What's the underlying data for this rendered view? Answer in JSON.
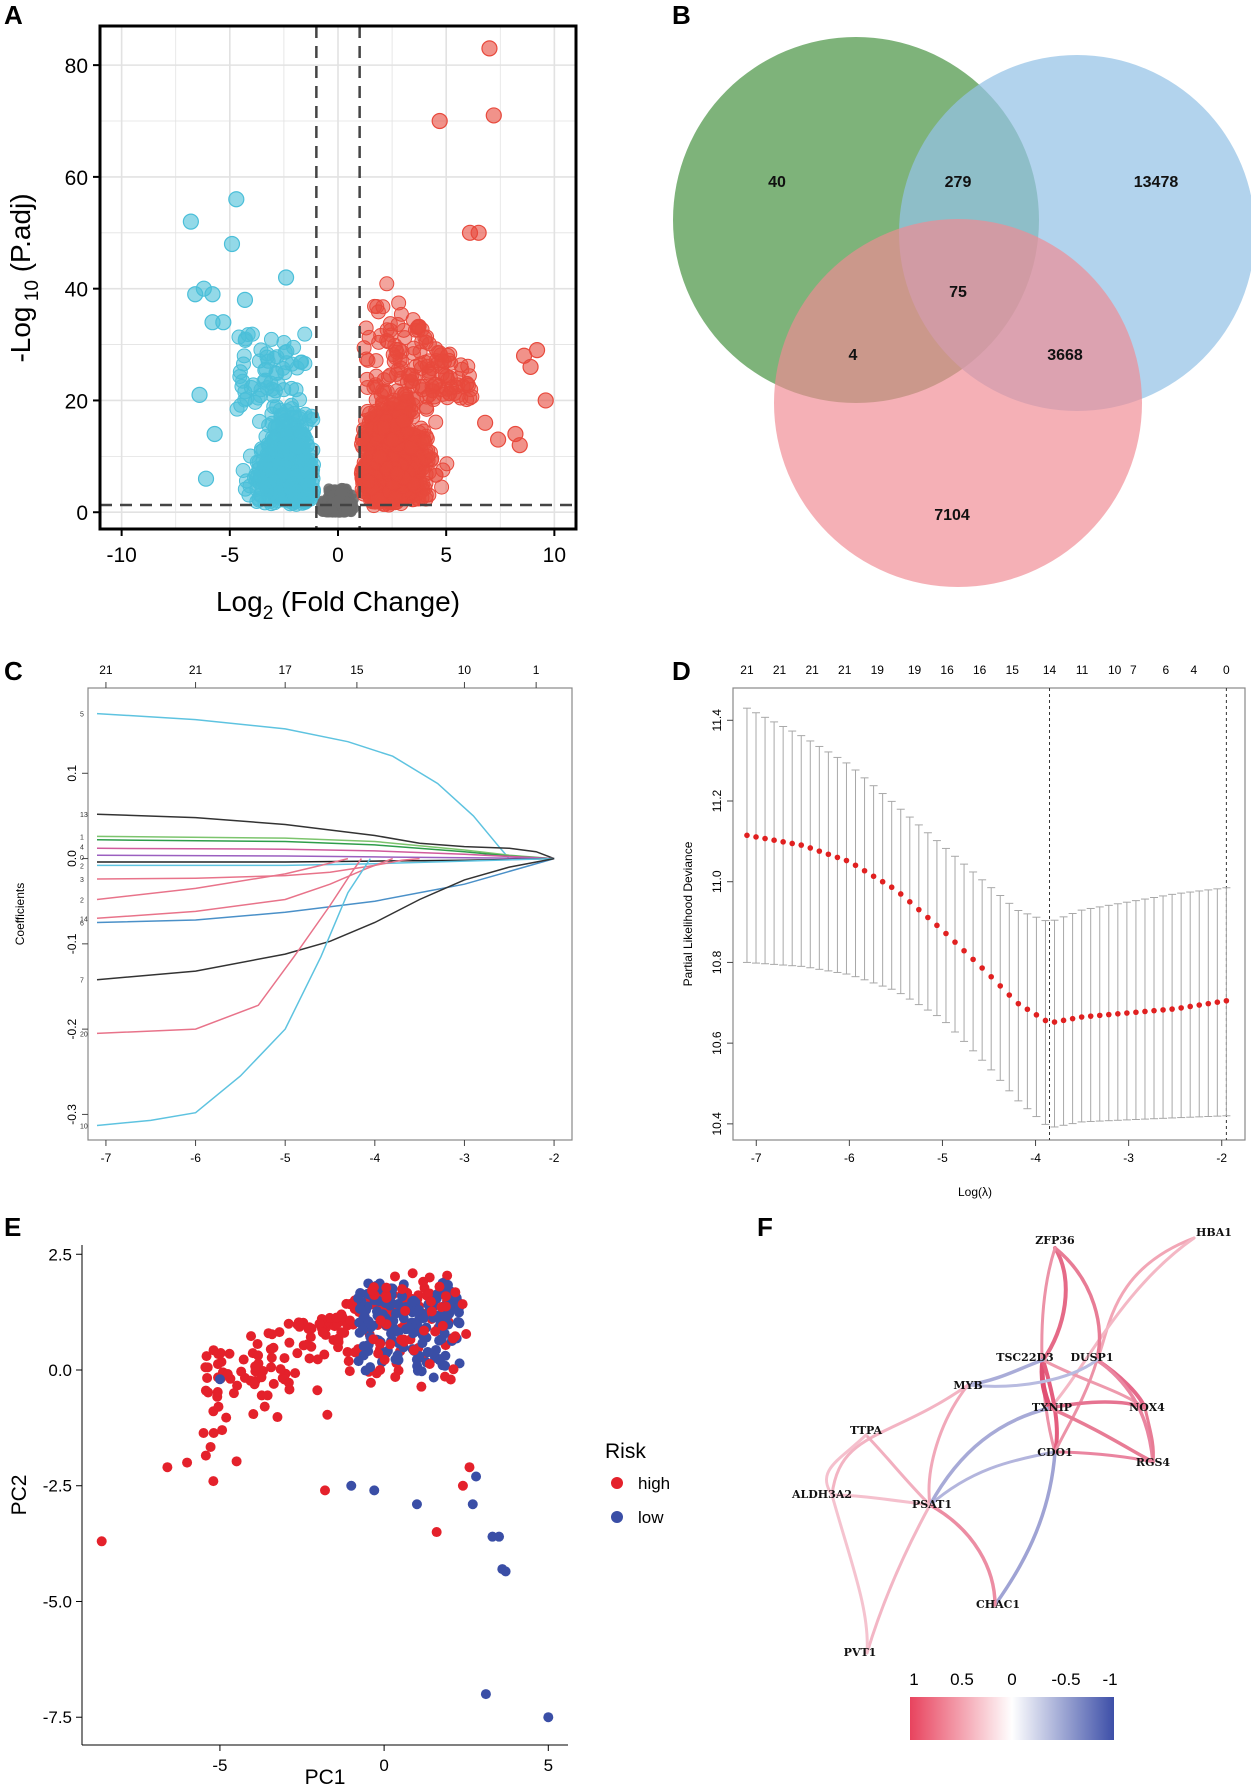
{
  "panels": [
    "A",
    "B",
    "C",
    "D",
    "E",
    "F"
  ],
  "chart_data": [
    {
      "panel": "A",
      "type": "scatter",
      "title": "",
      "xlabel_main": "Log",
      "xlabel_sub": "2",
      "xlabel_rest": " (Fold Change)",
      "ylabel_main": "-Log",
      "ylabel_sub": " 10",
      "ylabel_rest": " (P.adj)",
      "xlim": [
        -11,
        11
      ],
      "ylim": [
        -3,
        87
      ],
      "xticks": [
        -10,
        -5,
        0,
        5,
        10
      ],
      "xtick_labels": [
        "-10",
        "-5",
        "0",
        "5",
        "10"
      ],
      "yticks": [
        0,
        20,
        40,
        60,
        80
      ],
      "ytick_labels": [
        "0",
        "20",
        "40",
        "60",
        "80"
      ],
      "thresholds": {
        "log2fc": [
          -1,
          1
        ],
        "neglog10_padj": 1.3
      },
      "colors": {
        "up": "#e8493c",
        "down": "#4bbfd9",
        "ns": "#6b6b6b"
      },
      "highlight_points_up": [
        [
          7,
          83
        ],
        [
          7.2,
          71
        ],
        [
          4.7,
          70
        ],
        [
          6.5,
          50
        ],
        [
          6.1,
          50
        ],
        [
          8.6,
          28
        ],
        [
          9.2,
          29
        ],
        [
          8.9,
          26
        ],
        [
          9.6,
          20
        ],
        [
          8.2,
          14
        ],
        [
          8.4,
          12
        ],
        [
          7.4,
          13
        ],
        [
          6.8,
          16
        ]
      ],
      "highlight_points_down": [
        [
          -6.8,
          52
        ],
        [
          -4.7,
          56
        ],
        [
          -4.9,
          48
        ],
        [
          -6.2,
          40
        ],
        [
          -6.6,
          39
        ],
        [
          -5.8,
          39
        ],
        [
          -2.4,
          42
        ],
        [
          -5.3,
          34
        ],
        [
          -5.8,
          34
        ],
        [
          -6.4,
          21
        ],
        [
          -5.7,
          14
        ],
        [
          -6.1,
          6
        ],
        [
          -4.3,
          38
        ]
      ]
    },
    {
      "panel": "B",
      "type": "venn",
      "sets": [
        {
          "color": "#5a9e55"
        },
        {
          "color": "#94c2e6"
        },
        {
          "color": "#f08a94"
        }
      ],
      "regions": [
        {
          "id": "only-green",
          "value": "40"
        },
        {
          "id": "green-blue",
          "value": "279"
        },
        {
          "id": "only-blue",
          "value": "13478"
        },
        {
          "id": "all-three",
          "value": "75"
        },
        {
          "id": "green-red",
          "value": "4"
        },
        {
          "id": "blue-red",
          "value": "3668"
        },
        {
          "id": "only-red",
          "value": "7104"
        }
      ]
    },
    {
      "panel": "C",
      "type": "line",
      "xlabel": "",
      "ylabel": "Coefficients",
      "xlim": [
        -7.2,
        -1.8
      ],
      "ylim": [
        -0.33,
        0.2
      ],
      "xticks": [
        -7,
        -6,
        -5,
        -4,
        -3,
        -2
      ],
      "xtick_labels": [
        "-7",
        "-6",
        "-5",
        "-4",
        "-3",
        "-2"
      ],
      "yticks": [
        -0.3,
        -0.2,
        -0.1,
        0.0,
        0.1
      ],
      "ytick_labels": [
        "-0.3",
        "-0.2",
        "-0.1",
        "0.0",
        "0.1"
      ],
      "top_ticks": [
        -7,
        -6,
        -5,
        -4.2,
        -3,
        -2.2
      ],
      "top_labels": [
        "21",
        "21",
        "17",
        "15",
        "10",
        "1"
      ],
      "series": [
        {
          "label": "5",
          "color": "#5ec3e0",
          "points": [
            [
              -7.1,
              0.17
            ],
            [
              -6,
              0.163
            ],
            [
              -5,
              0.152
            ],
            [
              -4.3,
              0.137
            ],
            [
              -3.8,
              0.12
            ],
            [
              -3.3,
              0.088
            ],
            [
              -2.9,
              0.05
            ],
            [
              -2.6,
              0.012
            ],
            [
              -2.5,
              0
            ]
          ]
        },
        {
          "label": "13",
          "color": "#333333",
          "points": [
            [
              -7.1,
              0.052
            ],
            [
              -6,
              0.048
            ],
            [
              -5,
              0.04
            ],
            [
              -4,
              0.027
            ],
            [
              -3.5,
              0.018
            ],
            [
              -3,
              0.014
            ],
            [
              -2.5,
              0.012
            ],
            [
              -2.2,
              0.008
            ],
            [
              -2,
              0
            ]
          ]
        },
        {
          "label": "",
          "color": "#7cc46d",
          "points": [
            [
              -7.1,
              0.026
            ],
            [
              -5,
              0.024
            ],
            [
              -4,
              0.02
            ],
            [
              -3,
              0.01
            ],
            [
              -2.5,
              0.004
            ],
            [
              -2,
              0
            ]
          ]
        },
        {
          "label": "",
          "color": "#2e9d4a",
          "points": [
            [
              -7.1,
              0.022
            ],
            [
              -5,
              0.02
            ],
            [
              -4,
              0.016
            ],
            [
              -3,
              0.008
            ],
            [
              -2.5,
              0.003
            ],
            [
              -2,
              0
            ]
          ]
        },
        {
          "label": "",
          "color": "#d05b9c",
          "points": [
            [
              -7.1,
              0.012
            ],
            [
              -5,
              0.011
            ],
            [
              -4,
              0.009
            ],
            [
              -3,
              0.005
            ],
            [
              -2,
              0
            ]
          ]
        },
        {
          "label": "",
          "color": "#9b5fc0",
          "points": [
            [
              -7.1,
              0.004
            ],
            [
              -5,
              0.003
            ],
            [
              -4,
              0.002
            ],
            [
              -3,
              0.001
            ],
            [
              -2,
              0
            ]
          ]
        },
        {
          "label": "",
          "color": "#222222",
          "points": [
            [
              -7.1,
              -0.004
            ],
            [
              -5,
              -0.004
            ],
            [
              -4,
              -0.003
            ],
            [
              -3,
              -0.002
            ],
            [
              -2,
              0
            ]
          ]
        },
        {
          "label": "",
          "color": "#5ec3e0",
          "points": [
            [
              -7.1,
              -0.008
            ],
            [
              -5,
              -0.008
            ],
            [
              -4,
              -0.006
            ],
            [
              -3,
              -0.003
            ],
            [
              -2,
              0
            ]
          ]
        },
        {
          "label": "",
          "color": "#e8738a",
          "points": [
            [
              -7.1,
              -0.024
            ],
            [
              -6,
              -0.023
            ],
            [
              -5,
              -0.02
            ],
            [
              -4.5,
              -0.016
            ],
            [
              -4,
              -0.008
            ],
            [
              -3.7,
              -0.002
            ],
            [
              -3.5,
              0
            ]
          ]
        },
        {
          "label": "",
          "color": "#e8738a",
          "points": [
            [
              -7.1,
              -0.048
            ],
            [
              -6,
              -0.035
            ],
            [
              -5,
              -0.018
            ],
            [
              -4.6,
              -0.008
            ],
            [
              -4.3,
              0
            ]
          ]
        },
        {
          "label": "",
          "color": "#e8738a",
          "points": [
            [
              -7.1,
              -0.07
            ],
            [
              -6,
              -0.062
            ],
            [
              -5,
              -0.048
            ],
            [
              -4.5,
              -0.03
            ],
            [
              -4.1,
              -0.012
            ],
            [
              -3.8,
              0
            ]
          ]
        },
        {
          "label": "4",
          "color": "#4a90c8",
          "points": [
            [
              -7.1,
              -0.075
            ],
            [
              -6,
              -0.072
            ],
            [
              -5,
              -0.063
            ],
            [
              -4,
              -0.05
            ],
            [
              -3,
              -0.03
            ],
            [
              -2.5,
              -0.015
            ],
            [
              -2,
              0
            ]
          ]
        },
        {
          "label": "7",
          "color": "#333333",
          "points": [
            [
              -7.1,
              -0.142
            ],
            [
              -6,
              -0.132
            ],
            [
              -5,
              -0.112
            ],
            [
              -4.5,
              -0.097
            ],
            [
              -4,
              -0.075
            ],
            [
              -3.5,
              -0.048
            ],
            [
              -3,
              -0.025
            ],
            [
              -2.5,
              -0.01
            ],
            [
              -2,
              0
            ]
          ]
        },
        {
          "label": "20",
          "color": "#e8738a",
          "points": [
            [
              -7.1,
              -0.205
            ],
            [
              -6,
              -0.2
            ],
            [
              -5.3,
              -0.172
            ],
            [
              -4.9,
              -0.115
            ],
            [
              -4.5,
              -0.055
            ],
            [
              -4.25,
              -0.015
            ],
            [
              -4.15,
              0
            ]
          ]
        },
        {
          "label": "10",
          "color": "#5ec3e0",
          "points": [
            [
              -7.1,
              -0.313
            ],
            [
              -6.5,
              -0.307
            ],
            [
              -6,
              -0.298
            ],
            [
              -5.5,
              -0.255
            ],
            [
              -5,
              -0.2
            ],
            [
              -4.6,
              -0.115
            ],
            [
              -4.3,
              -0.04
            ],
            [
              -4.05,
              0
            ]
          ]
        }
      ],
      "side_labels": [
        "5",
        "13",
        "1",
        "4",
        "0",
        "2",
        "3",
        "14",
        "6",
        "7",
        "20",
        "10"
      ]
    },
    {
      "panel": "D",
      "type": "line",
      "xlabel": "Log(λ)",
      "ylabel": "Partial Likelihood Deviance",
      "xlim": [
        -7.25,
        -1.75
      ],
      "ylim": [
        10.36,
        11.48
      ],
      "xticks": [
        -7,
        -6,
        -5,
        -4,
        -3,
        -2
      ],
      "xtick_labels": [
        "-7",
        "-6",
        "-5",
        "-4",
        "-3",
        "-2"
      ],
      "yticks": [
        10.4,
        10.6,
        10.8,
        11.0,
        11.2,
        11.4
      ],
      "ytick_labels": [
        "10.4",
        "10.6",
        "10.8",
        "11.0",
        "11.2",
        "11.4"
      ],
      "top_ticks": [
        -7.1,
        -6.75,
        -6.4,
        -6.05,
        -5.7,
        -5.3,
        -4.95,
        -4.6,
        -4.25,
        -3.85,
        -3.5,
        -3.15,
        -2.95,
        -2.6,
        -2.3,
        -1.95
      ],
      "top_labels": [
        "21",
        "21",
        "21",
        "21",
        "19",
        "19",
        "16",
        "16",
        "15",
        "14",
        "11",
        "10",
        "7",
        "6",
        "4",
        "0"
      ],
      "vlines": [
        -3.85,
        -1.95
      ],
      "point_color": "#e02020",
      "mean_curve": [
        [
          -7.1,
          11.115
        ],
        [
          -6.5,
          11.09
        ],
        [
          -6,
          11.05
        ],
        [
          -5.5,
          10.98
        ],
        [
          -5,
          10.88
        ],
        [
          -4.5,
          10.77
        ],
        [
          -4.2,
          10.7
        ],
        [
          -3.85,
          10.65
        ],
        [
          -3.5,
          10.665
        ],
        [
          -3,
          10.675
        ],
        [
          -2.5,
          10.685
        ],
        [
          -1.95,
          10.705
        ]
      ],
      "upper_curve": [
        [
          -7.1,
          11.43
        ],
        [
          -6.5,
          11.36
        ],
        [
          -6,
          11.29
        ],
        [
          -5.5,
          11.19
        ],
        [
          -5,
          11.09
        ],
        [
          -4.5,
          10.99
        ],
        [
          -4.2,
          10.93
        ],
        [
          -3.85,
          10.9
        ],
        [
          -3.5,
          10.93
        ],
        [
          -3,
          10.95
        ],
        [
          -2.5,
          10.97
        ],
        [
          -1.95,
          10.985
        ]
      ],
      "lower_curve": [
        [
          -7.1,
          10.8
        ],
        [
          -6.5,
          10.79
        ],
        [
          -6,
          10.77
        ],
        [
          -5.5,
          10.73
        ],
        [
          -5,
          10.66
        ],
        [
          -4.5,
          10.54
        ],
        [
          -4.2,
          10.46
        ],
        [
          -3.85,
          10.39
        ],
        [
          -3.5,
          10.405
        ],
        [
          -3,
          10.41
        ],
        [
          -2.5,
          10.415
        ],
        [
          -1.95,
          10.42
        ]
      ]
    },
    {
      "panel": "E",
      "type": "scatter",
      "xlabel": "PC1",
      "ylabel": "PC2",
      "xlim": [
        -9.2,
        5.6
      ],
      "ylim": [
        -8.1,
        2.7
      ],
      "xticks": [
        -5,
        0,
        5
      ],
      "xtick_labels": [
        "-5",
        "0",
        "5"
      ],
      "yticks": [
        -7.5,
        -5.0,
        -2.5,
        0.0,
        2.5
      ],
      "ytick_labels": [
        "-7.5",
        "-5.0",
        "-2.5",
        "0.0",
        "2.5"
      ],
      "legend": {
        "title": "Risk",
        "position": "right",
        "entries": [
          {
            "label": "high",
            "color": "#e4212b"
          },
          {
            "label": "low",
            "color": "#3a4ea6"
          }
        ]
      },
      "outliers": [
        {
          "risk": "high",
          "x": -8.6,
          "y": -3.7
        },
        {
          "risk": "high",
          "x": -6.6,
          "y": -2.1
        },
        {
          "risk": "high",
          "x": -6.0,
          "y": -2.0
        },
        {
          "risk": "high",
          "x": -5.2,
          "y": -2.4
        },
        {
          "risk": "high",
          "x": -1.8,
          "y": -2.6
        },
        {
          "risk": "high",
          "x": 1.6,
          "y": -3.5
        },
        {
          "risk": "high",
          "x": 2.4,
          "y": -2.5
        },
        {
          "risk": "high",
          "x": 2.6,
          "y": -2.1
        },
        {
          "risk": "low",
          "x": -5.0,
          "y": -0.2
        },
        {
          "risk": "low",
          "x": -1.0,
          "y": -2.5
        },
        {
          "risk": "low",
          "x": -0.3,
          "y": -2.6
        },
        {
          "risk": "low",
          "x": 1.0,
          "y": -2.9
        },
        {
          "risk": "low",
          "x": 3.3,
          "y": -3.6
        },
        {
          "risk": "low",
          "x": 3.5,
          "y": -3.6
        },
        {
          "risk": "low",
          "x": 3.6,
          "y": -4.3
        },
        {
          "risk": "low",
          "x": 3.7,
          "y": -4.35
        },
        {
          "risk": "low",
          "x": 3.1,
          "y": -7.0
        },
        {
          "risk": "low",
          "x": 5.0,
          "y": -7.5
        },
        {
          "risk": "low",
          "x": 2.7,
          "y": -2.9
        },
        {
          "risk": "low",
          "x": 2.8,
          "y": -2.3
        }
      ]
    },
    {
      "panel": "F",
      "type": "network",
      "genes": [
        "HBA1",
        "ZFP36",
        "TSC22D3",
        "DUSP1",
        "MYB",
        "TXNIP",
        "NOX4",
        "TTPA",
        "RGS4",
        "CDO1",
        "ALDH3A2",
        "PSAT1",
        "CHAC1",
        "PVT1"
      ],
      "colorbar": {
        "labels": [
          "1",
          "0.5",
          "0",
          "-0.5",
          "-1"
        ],
        "colors": [
          "#e8435e",
          "#ffffff",
          "#3d4fa8"
        ]
      }
    }
  ]
}
